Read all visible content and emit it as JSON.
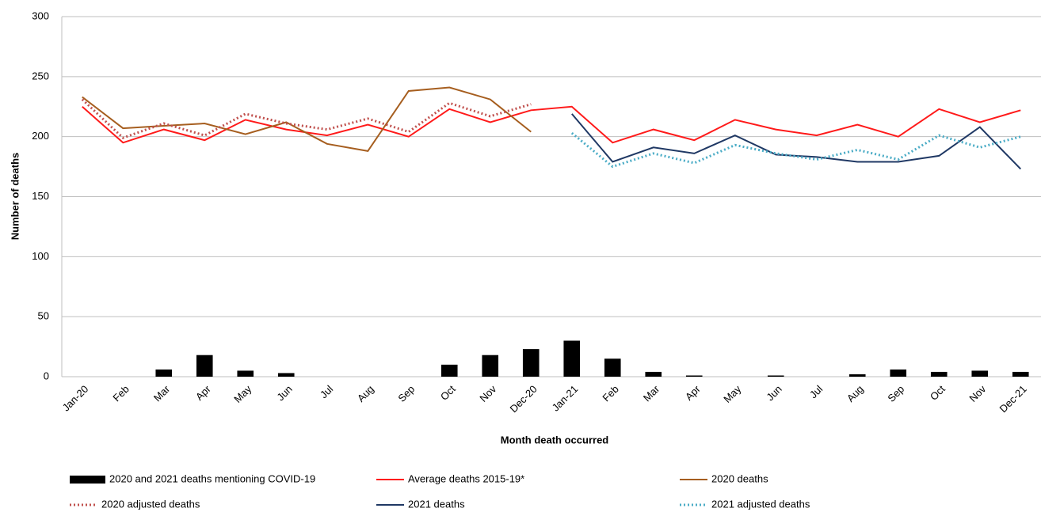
{
  "chart_data": {
    "type": "line",
    "x_label": "Month death occurred",
    "y_label": "Number of deaths",
    "categories": [
      "Jan-20",
      "Feb",
      "Mar",
      "Apr",
      "May",
      "Jun",
      "Jul",
      "Aug",
      "Sep",
      "Oct",
      "Nov",
      "Dec-20",
      "Jan-21",
      "Feb",
      "Mar",
      "Apr",
      "May",
      "Jun",
      "Jul",
      "Aug",
      "Sep",
      "Oct",
      "Nov",
      "Dec-21"
    ],
    "ylim": [
      0,
      300
    ],
    "yticks": [
      0,
      50,
      100,
      150,
      200,
      250,
      300
    ],
    "grid": true,
    "legend": "bottom",
    "series": [
      {
        "name": "2020 and 2021 deaths mentioning COVID-19",
        "type": "bar",
        "color": "#000000",
        "values": [
          0,
          0,
          6,
          18,
          5,
          3,
          0,
          0,
          0,
          10,
          18,
          23,
          30,
          15,
          4,
          1,
          0,
          1,
          0,
          2,
          6,
          4,
          5,
          4
        ]
      },
      {
        "name": "Average deaths 2015-19*",
        "color": "#ff1a1a",
        "values": [
          225,
          195,
          206,
          197,
          214,
          206,
          201,
          210,
          200,
          223,
          212,
          222,
          225,
          195,
          206,
          197,
          214,
          206,
          201,
          210,
          200,
          223,
          212,
          222
        ]
      },
      {
        "name": "2020 deaths",
        "color": "#a65e1f",
        "values": [
          233,
          207,
          209,
          211,
          202,
          212,
          194,
          188,
          238,
          241,
          231,
          204,
          null,
          null,
          null,
          null,
          null,
          null,
          null,
          null,
          null,
          null,
          null,
          null
        ]
      },
      {
        "name": "2020 adjusted deaths",
        "color": "#c0504d",
        "dash": true,
        "values": [
          231,
          199,
          211,
          201,
          219,
          211,
          206,
          215,
          204,
          228,
          217,
          227,
          null,
          null,
          null,
          null,
          null,
          null,
          null,
          null,
          null,
          null,
          null,
          null
        ]
      },
      {
        "name": "2021 deaths",
        "color": "#1f3864",
        "values": [
          null,
          null,
          null,
          null,
          null,
          null,
          null,
          null,
          null,
          null,
          null,
          null,
          219,
          179,
          191,
          186,
          201,
          185,
          183,
          179,
          179,
          184,
          208,
          173
        ]
      },
      {
        "name": "2021 adjusted deaths",
        "color": "#4bacc6",
        "dash": true,
        "values": [
          null,
          null,
          null,
          null,
          null,
          null,
          null,
          null,
          null,
          null,
          null,
          null,
          203,
          175,
          186,
          178,
          193,
          186,
          181,
          189,
          181,
          201,
          191,
          200
        ]
      }
    ]
  }
}
